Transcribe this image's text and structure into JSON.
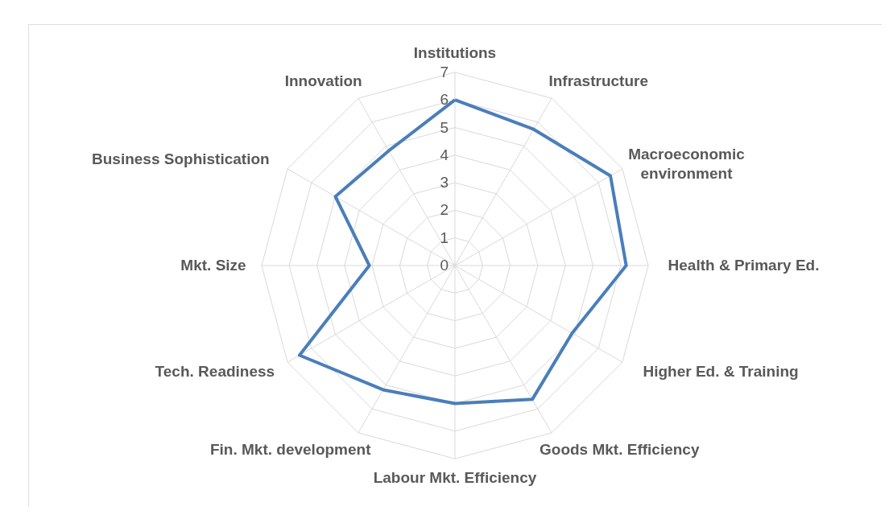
{
  "chart_data": {
    "type": "radar",
    "categories": [
      "Institutions",
      "Infrastructure",
      "Macroeconomic\nenvironment",
      "Health & Primary Ed.",
      "Higher Ed. & Training",
      "Goods Mkt. Efficiency",
      "Labour Mkt. Efficiency",
      "Fin. Mkt. development",
      "Tech. Readiness",
      "Mkt. Size",
      "Business Sophistication",
      "Innovation"
    ],
    "series": [
      {
        "color": "#4a7ebb",
        "values": [
          6.0,
          5.7,
          6.5,
          6.2,
          4.9,
          5.6,
          5.0,
          5.2,
          6.5,
          3.1,
          5.0,
          4.8
        ]
      }
    ],
    "ylim": [
      0,
      7
    ],
    "yticks": [
      0,
      1,
      2,
      3,
      4,
      5,
      6,
      7
    ],
    "grid": true,
    "marker": "none",
    "line_style": "solid"
  }
}
